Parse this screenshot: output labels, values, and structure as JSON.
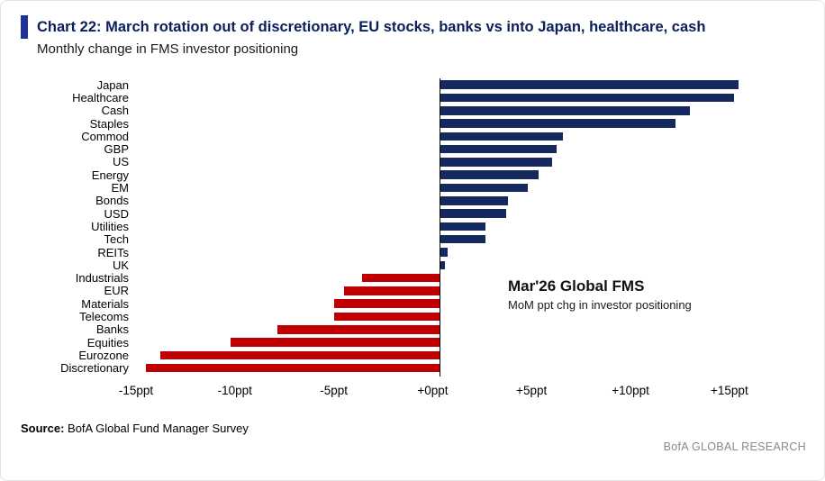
{
  "header": {
    "title": "Chart 22: March rotation out of discretionary, EU stocks, banks vs into Japan, healthcare, cash",
    "subtitle": "Monthly change in FMS investor positioning"
  },
  "chart_data": {
    "type": "bar",
    "orientation": "horizontal",
    "title": "Chart 22: March rotation out of discretionary, EU stocks, banks vs into Japan, healthcare, cash",
    "subtitle": "Monthly change in FMS investor positioning",
    "categories": [
      "Japan",
      "Healthcare",
      "Cash",
      "Staples",
      "Commod",
      "GBP",
      "US",
      "Energy",
      "EM",
      "Bonds",
      "USD",
      "Utilities",
      "Tech",
      "REITs",
      "UK",
      "Industrials",
      "EUR",
      "Materials",
      "Telecoms",
      "Banks",
      "Equities",
      "Eurozone",
      "Discretionary"
    ],
    "values": [
      14.8,
      14.6,
      12.4,
      11.7,
      6.1,
      5.8,
      5.6,
      4.9,
      4.4,
      3.4,
      3.3,
      2.3,
      2.3,
      0.4,
      0.3,
      -3.8,
      -4.7,
      -5.2,
      -5.2,
      -8.0,
      -10.3,
      -13.8,
      -14.5
    ],
    "x_ticks": [
      -15,
      -10,
      -5,
      0,
      5,
      10,
      15
    ],
    "x_tick_labels": [
      "-15ppt",
      "-10ppt",
      "-5ppt",
      "+0ppt",
      "+5ppt",
      "+10ppt",
      "+15ppt"
    ],
    "xlim": [
      -15,
      18.33
    ],
    "grid": false,
    "legend": false,
    "positive_color": "#16295f",
    "negative_color": "#c00000",
    "annotation": {
      "title": "Mar'26 Global FMS",
      "subtitle": "MoM ppt chg in investor positioning"
    }
  },
  "footer": {
    "source_label": "Source:",
    "source_text": " BofA Global Fund Manager Survey",
    "brand": "BofA GLOBAL RESEARCH"
  }
}
